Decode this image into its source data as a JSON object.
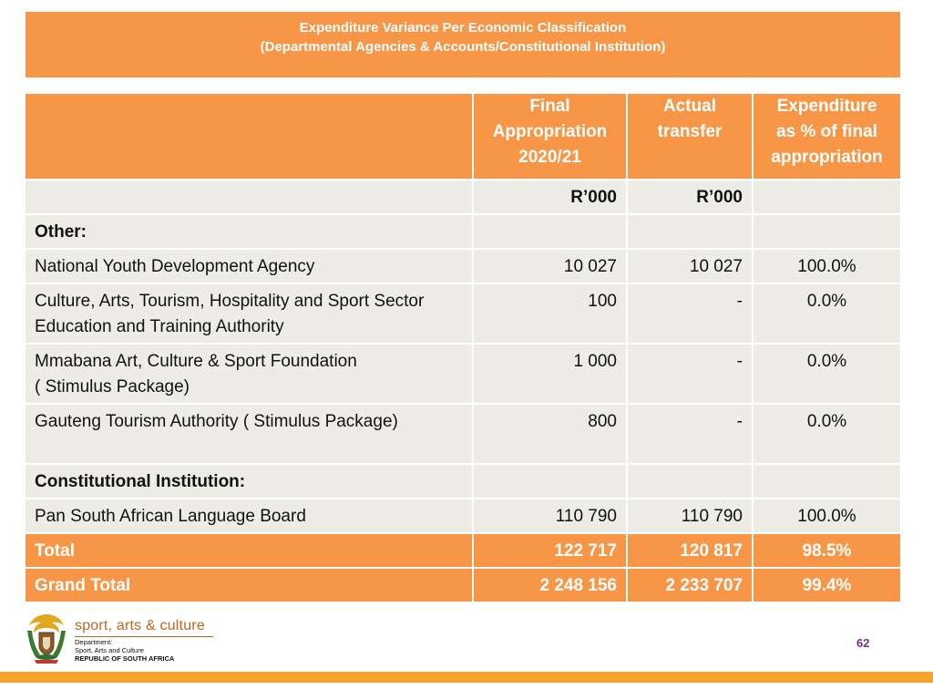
{
  "title": {
    "line1": "Expenditure Variance Per Economic Classification",
    "line2": "(Departmental Agencies & Accounts/Constitutional Institution)"
  },
  "table": {
    "headers": {
      "final_appropriation": [
        "Final",
        "Appropriation",
        "2020/21"
      ],
      "actual_transfer": [
        "Actual",
        "transfer"
      ],
      "expenditure_pct": [
        "Expenditure",
        "as % of final",
        "appropriation"
      ]
    },
    "units": {
      "final": "R’000",
      "actual": "R’000"
    },
    "section_other": "Other:",
    "rows": [
      {
        "name": [
          "National Youth Development Agency"
        ],
        "final": "10 027",
        "actual": "10 027",
        "pct": "100.0%"
      },
      {
        "name": [
          "Culture, Arts, Tourism, Hospitality and Sport Sector",
          "Education and Training Authority"
        ],
        "final": "100",
        "actual": "-",
        "pct": "0.0%"
      },
      {
        "name": [
          "Mmabana Art, Culture & Sport Foundation",
          "( Stimulus Package)"
        ],
        "final": "1 000",
        "actual": "-",
        "pct": "0.0%"
      },
      {
        "name": [
          "Gauteng Tourism Authority ( Stimulus Package)"
        ],
        "final": "800",
        "actual": "-",
        "pct": "0.0%"
      }
    ],
    "section_constitutional": "Constitutional Institution:",
    "constitutional_row": {
      "name": "Pan South African Language Board",
      "final": "110 790",
      "actual": "110 790",
      "pct": "100.0%"
    },
    "total": {
      "label": "Total",
      "final": "122 717",
      "actual": "120 817",
      "pct": "98.5%"
    },
    "grand_total": {
      "label": "Grand Total",
      "final": "2 248 156",
      "actual": "2 233 707",
      "pct": "99.4%"
    }
  },
  "footer": {
    "brand": "sport, arts & culture",
    "dept_line1": "Department:",
    "dept_line2": "Sport, Arts and Culture",
    "dept_line3": "REPUBLIC OF SOUTH AFRICA",
    "page_number": "62"
  },
  "colors": {
    "header_orange": "#f79646",
    "row_fill": "#eeede5",
    "bottom_bar": "#f5a32a",
    "page_number": "#7a2f8a"
  }
}
